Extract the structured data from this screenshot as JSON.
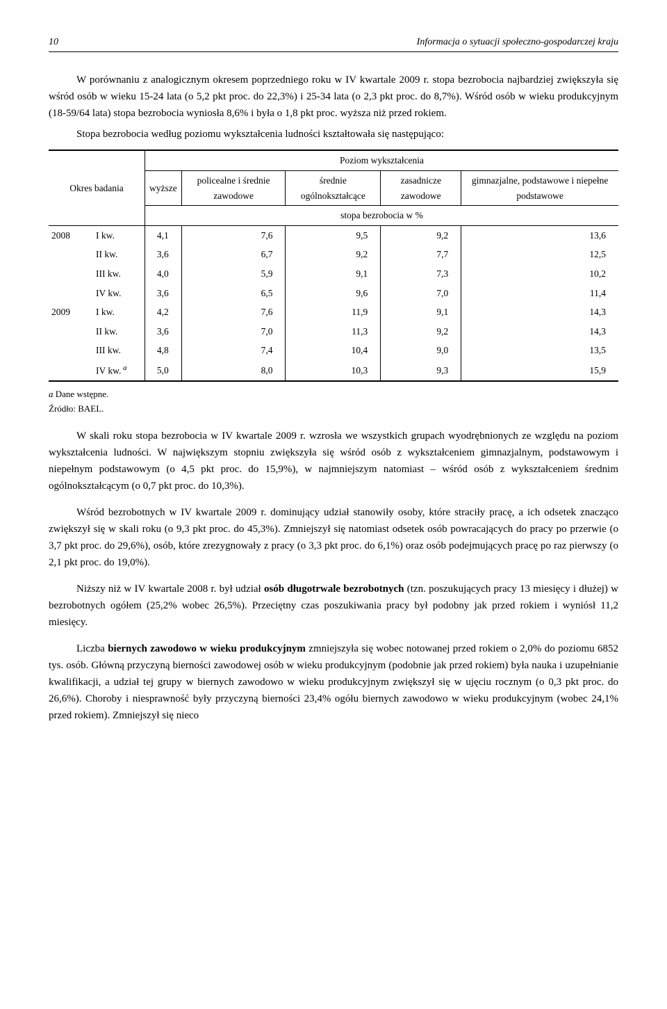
{
  "header": {
    "page_number": "10",
    "running_title": "Informacja o sytuacji społeczno-gospodarczej kraju"
  },
  "p1": "W porównaniu z analogicznym okresem poprzedniego roku w IV kwartale 2009 r. stopa bezrobocia najbardziej zwiększyła się wśród osób w wieku 15-24 lata (o 5,2 pkt proc. do 22,3%) i 25-34 lata (o 2,3 pkt proc. do 8,7%). Wśród osób w wieku produkcyjnym (18-59/64 lata) stopa bezrobocia wyniosła 8,6% i była o 1,8 pkt proc. wyższa niż przed rokiem.",
  "p2": "Stopa bezrobocia według poziomu wykształcenia ludności kształtowała się następująco:",
  "table": {
    "row_header": "Okres badania",
    "group_header": "Poziom wykształcenia",
    "sub_header": "stopa bezrobocia w %",
    "columns": [
      "wyższe",
      "policealne i średnie zawodowe",
      "średnie ogólnokształcące",
      "zasadnicze zawodowe",
      "gimnazjalne, podstawowe i niepełne podstawowe"
    ],
    "rows": [
      {
        "year": "2008",
        "q": "I kw.",
        "vals": [
          "4,1",
          "7,6",
          "9,5",
          "9,2",
          "13,6"
        ]
      },
      {
        "year": "",
        "q": "II kw.",
        "vals": [
          "3,6",
          "6,7",
          "9,2",
          "7,7",
          "12,5"
        ]
      },
      {
        "year": "",
        "q": "III kw.",
        "vals": [
          "4,0",
          "5,9",
          "9,1",
          "7,3",
          "10,2"
        ]
      },
      {
        "year": "",
        "q": "IV kw.",
        "vals": [
          "3,6",
          "6,5",
          "9,6",
          "7,0",
          "11,4"
        ]
      },
      {
        "year": "2009",
        "q": "I kw.",
        "vals": [
          "4,2",
          "7,6",
          "11,9",
          "9,1",
          "14,3"
        ]
      },
      {
        "year": "",
        "q": "II kw.",
        "vals": [
          "3,6",
          "7,0",
          "11,3",
          "9,2",
          "14,3"
        ]
      },
      {
        "year": "",
        "q": "III kw.",
        "vals": [
          "4,8",
          "7,4",
          "10,4",
          "9,0",
          "13,5"
        ]
      },
      {
        "year": "",
        "q": "IV kw.",
        "sup": "a",
        "vals": [
          "5,0",
          "8,0",
          "10,3",
          "9,3",
          "15,9"
        ]
      }
    ]
  },
  "footnote_a_label": "a",
  "footnote_a": " Dane wstępne.",
  "footnote_src": "Źródło: BAEL.",
  "p3a": "W skali roku stopa bezrobocia w IV kwartale 2009 r. wzrosła we wszystkich grupach wyodrębnionych ze względu na poziom wykształcenia ludności. W największym stopniu zwiększyła się wśród osób z wykształceniem gimnazjalnym, podstawowym i niepełnym podstawowym (o 4,5 pkt proc. do 15,9%), w najmniejszym natomiast – wśród osób z wykształceniem średnim ogólnokształcącym (o 0,7 pkt proc. do 10,3%).",
  "p4": "Wśród bezrobotnych w IV kwartale 2009 r. dominujący udział stanowiły osoby, które straciły pracę, a ich odsetek znacząco zwiększył się w skali roku (o 9,3 pkt proc. do 45,3%). Zmniejszył się natomiast odsetek osób powracających do pracy po przerwie (o 3,7 pkt proc. do 29,6%), osób, które zrezygnowały z pracy (o 3,3 pkt proc. do 6,1%) oraz osób podejmujących pracę po raz pierwszy (o 2,1 pkt proc. do 19,0%).",
  "p5_pre": "Niższy niż w IV kwartale 2008 r. był udział ",
  "p5_bold": "osób długotrwale bezrobotnych",
  "p5_post": " (tzn. poszukujących pracy 13 miesięcy i dłużej) w bezrobotnych ogółem (25,2% wobec 26,5%). Przeciętny czas poszukiwania pracy był podobny jak przed rokiem i wyniósł 11,2 miesięcy.",
  "p6_pre": "Liczba ",
  "p6_bold": "biernych zawodowo w wieku produkcyjnym",
  "p6_post": " zmniejszyła się wobec notowanej przed rokiem o 2,0% do poziomu 6852 tys. osób. Główną przyczyną bierności zawodowej osób w wieku produkcyjnym (podobnie jak przed rokiem) była nauka i uzupełnianie kwalifikacji, a udział tej grupy w biernych zawodowo w wieku produkcyjnym zwiększył się w ujęciu rocznym (o 0,3 pkt proc. do 26,6%). Choroby i niesprawność były przyczyną bierności 23,4% ogółu biernych zawodowo w wieku produkcyjnym (wobec 24,1% przed rokiem). Zmniejszył się nieco"
}
